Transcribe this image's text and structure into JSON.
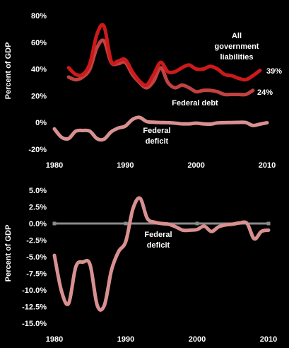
{
  "chart_data": [
    {
      "type": "line",
      "ylabel": "Percent of GDP",
      "xlim": [
        1980,
        2010
      ],
      "ylim": [
        -20,
        80
      ],
      "x_ticks": [
        "1980",
        "1990",
        "2000",
        "2010"
      ],
      "y_ticks": [
        {
          "value": 80,
          "label": "80%"
        },
        {
          "value": 60,
          "label": "60%"
        },
        {
          "value": 40,
          "label": "40%"
        },
        {
          "value": 20,
          "label": "20%"
        },
        {
          "value": 0,
          "label": "0%"
        },
        {
          "value": -20,
          "label": "-20%"
        }
      ],
      "series": [
        {
          "name_lines": [
            "All",
            "government",
            "liabilities"
          ],
          "end_label": "39%",
          "color": "#cc1a1a",
          "x": [
            1982,
            1983,
            1984,
            1985,
            1986,
            1987,
            1988,
            1989,
            1990,
            1991,
            1992,
            1993,
            1994,
            1995,
            1996,
            1997,
            1998,
            1999,
            2000,
            2001,
            2002,
            2003,
            2004,
            2005,
            2006,
            2007,
            2008,
            2009
          ],
          "values": [
            41,
            36,
            36,
            44,
            66,
            72,
            46,
            46,
            47,
            38,
            31,
            28,
            36,
            45,
            38,
            38,
            41,
            43,
            40,
            40,
            42,
            40,
            36,
            35,
            33,
            32,
            35,
            39
          ]
        },
        {
          "name_lines": [
            "Federal debt"
          ],
          "end_label": "24%",
          "color": "#c24141",
          "x": [
            1982,
            1983,
            1984,
            1985,
            1986,
            1987,
            1988,
            1989,
            1990,
            1991,
            1992,
            1993,
            1994,
            1995,
            1996,
            1997,
            1998,
            1999,
            2000,
            2001,
            2002,
            2003,
            2004,
            2005,
            2006,
            2007,
            2008
          ],
          "values": [
            34,
            32,
            34,
            40,
            56,
            61,
            45,
            44,
            45,
            36,
            30,
            26,
            31,
            41,
            30,
            26,
            28,
            26,
            23,
            24,
            24,
            23,
            21,
            21,
            21,
            21,
            24
          ]
        },
        {
          "name_lines": [
            "Federal",
            "deficit"
          ],
          "color": "#d99090",
          "x": [
            1980,
            1981,
            1982,
            1983,
            1984,
            1985,
            1986,
            1987,
            1988,
            1989,
            1990,
            1991,
            1992,
            1993,
            1994,
            1995,
            1996,
            1997,
            1998,
            1999,
            2000,
            2001,
            2002,
            2003,
            2004,
            2005,
            2006,
            2007,
            2008,
            2009,
            2010
          ],
          "values": [
            -4.8,
            -11,
            -12,
            -6.5,
            -6,
            -6.5,
            -12,
            -12.5,
            -7,
            -4.2,
            -2.7,
            2.2,
            3.8,
            0.8,
            0.2,
            0,
            -0.1,
            -0.5,
            -1,
            -1,
            -0.5,
            -1,
            -1.2,
            -0.3,
            -0.1,
            0,
            0.1,
            0,
            -2.2,
            -1.2,
            -0.2
          ]
        }
      ]
    },
    {
      "type": "line",
      "ylabel": "Percent of GDP",
      "xlim": [
        1980,
        2010
      ],
      "ylim": [
        -15,
        5
      ],
      "x_ticks": [
        "1980",
        "1990",
        "2000",
        "2010"
      ],
      "y_ticks": [
        {
          "value": 5,
          "label": "5.0%"
        },
        {
          "value": 2.5,
          "label": "2.5%"
        },
        {
          "value": 0,
          "label": "0.0%"
        },
        {
          "value": -2.5,
          "label": "-2.5%"
        },
        {
          "value": -5,
          "label": "-5.0%"
        },
        {
          "value": -7.5,
          "label": "-7.5%"
        },
        {
          "value": -10,
          "label": "-10.0%"
        },
        {
          "value": -12.5,
          "label": "-12.5%"
        },
        {
          "value": -15,
          "label": "-15.0%"
        }
      ],
      "zero_line_color": "#8a8a8a",
      "series": [
        {
          "name_lines": [
            "Federal",
            "deficit"
          ],
          "color": "#d99090",
          "x": [
            1980,
            1981,
            1982,
            1983,
            1984,
            1985,
            1986,
            1987,
            1988,
            1989,
            1990,
            1991,
            1992,
            1993,
            1994,
            1995,
            1996,
            1997,
            1998,
            1999,
            2000,
            2001,
            2002,
            2003,
            2004,
            2005,
            2006,
            2007,
            2008,
            2009,
            2010
          ],
          "values": [
            -4.8,
            -10.2,
            -12,
            -6.5,
            -5.8,
            -6.2,
            -12.3,
            -12.3,
            -7,
            -4.2,
            -2.7,
            2.2,
            3.8,
            0.8,
            0.2,
            0,
            -0.1,
            -0.5,
            -1,
            -1,
            -0.9,
            -0.4,
            -1.2,
            -0.5,
            -0.2,
            -0.1,
            0.1,
            0,
            -2.3,
            -1.2,
            -1.0
          ]
        }
      ]
    }
  ]
}
